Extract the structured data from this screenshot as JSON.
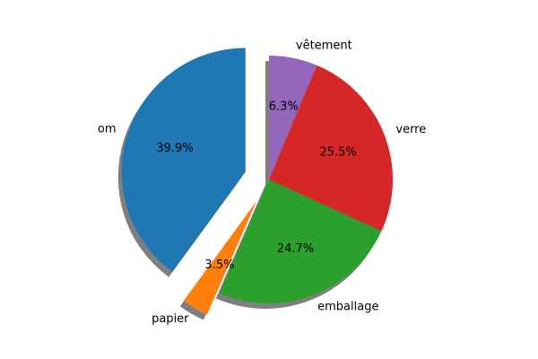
{
  "chart_data": {
    "type": "pie",
    "title": "",
    "slices": [
      {
        "label": "om",
        "percent_label": "39.9%",
        "value": 39.9,
        "color": "#1f77b4",
        "exploded": true
      },
      {
        "label": "papier",
        "percent_label": "3.5%",
        "value": 3.5,
        "color": "#ff7f0e",
        "exploded": true
      },
      {
        "label": "emballage",
        "percent_label": "24.7%",
        "value": 24.7,
        "color": "#2ca02c",
        "exploded": false
      },
      {
        "label": "verre",
        "percent_label": "25.5%",
        "value": 25.5,
        "color": "#d62728",
        "exploded": false
      },
      {
        "label": "vêtement",
        "percent_label": "6.3%",
        "value": 6.3,
        "color": "#9467bd",
        "exploded": false
      }
    ],
    "start_angle_deg": 90,
    "direction": "counterclockwise",
    "shadow": true,
    "legend": "none"
  }
}
